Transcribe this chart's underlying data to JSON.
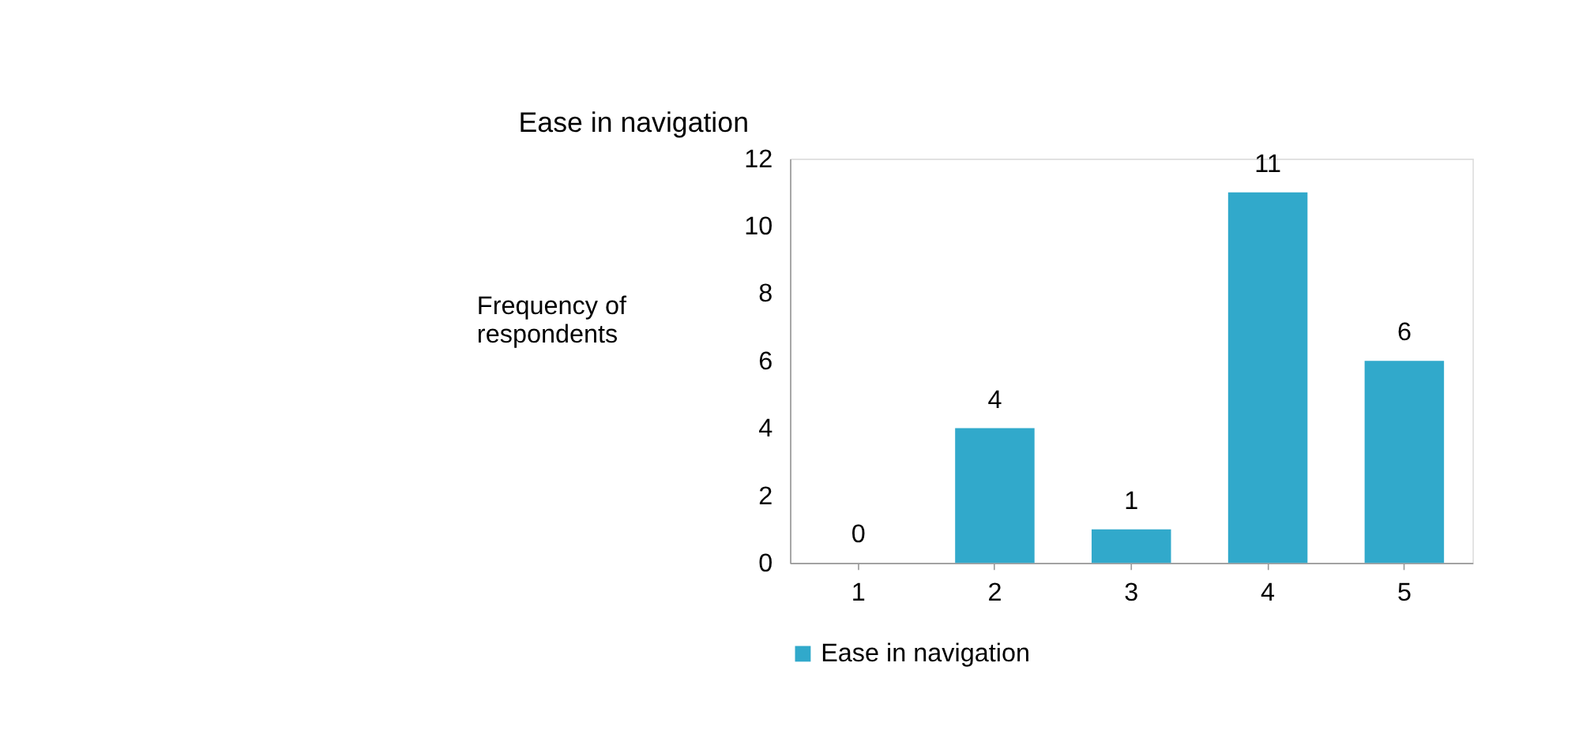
{
  "chart_data": {
    "type": "bar",
    "title": "Ease in navigation",
    "ylabel": "Frequency of respondents",
    "categories": [
      "1",
      "2",
      "3",
      "4",
      "5"
    ],
    "series": [
      {
        "name": "Ease in navigation",
        "color": "#31a9cb",
        "values": [
          0,
          4,
          1,
          11,
          6
        ]
      }
    ],
    "ylim": [
      0,
      12
    ],
    "yticks": [
      0,
      2,
      4,
      6,
      8,
      10,
      12
    ],
    "grid": false,
    "legend": "bottom",
    "data_labels": true
  }
}
